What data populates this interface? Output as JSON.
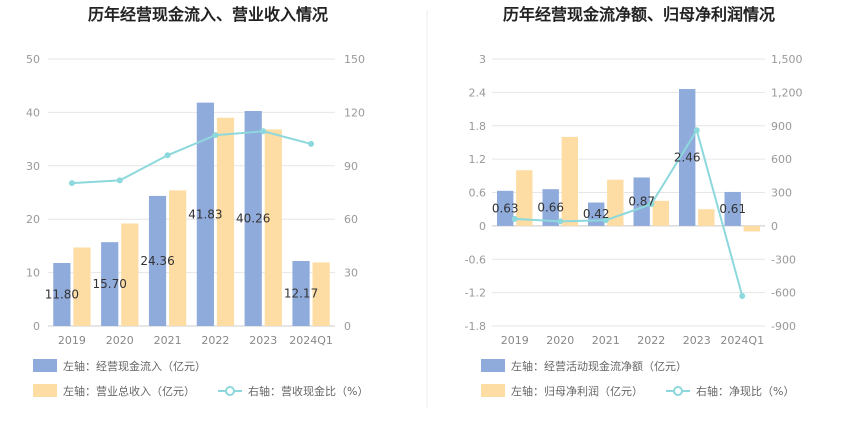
{
  "chart_data": [
    {
      "type": "bar",
      "title": "历年经营现金流入、营业收入情况",
      "categories": [
        "2019",
        "2020",
        "2021",
        "2022",
        "2023",
        "2024Q1"
      ],
      "left_axis": {
        "ylim": [
          0,
          50
        ],
        "ticks": [
          "0",
          "10",
          "20",
          "30",
          "40",
          "50"
        ]
      },
      "right_axis": {
        "ylim": [
          0,
          150
        ],
        "ticks": [
          "0",
          "30",
          "60",
          "90",
          "120",
          "150"
        ]
      },
      "series": [
        {
          "name": "左轴：经营现金流入（亿元）",
          "kind": "bar",
          "axis": "left",
          "color": "#8fabdc",
          "values": [
            11.8,
            15.7,
            24.36,
            41.83,
            40.26,
            12.17
          ],
          "labels": [
            "11.80",
            "15.70",
            "24.36",
            "41.83",
            "40.26",
            "12.17"
          ]
        },
        {
          "name": "左轴：营业总收入（亿元）",
          "kind": "bar",
          "axis": "left",
          "color": "#fddda3",
          "values": [
            14.7,
            19.2,
            25.4,
            39.0,
            36.8,
            11.9
          ]
        },
        {
          "name": "右轴：营收现金比（%）",
          "kind": "line",
          "axis": "right",
          "color": "#8dd8dc",
          "values": [
            80.3,
            81.8,
            95.9,
            107.2,
            109.4,
            102.3
          ]
        }
      ],
      "legend_position": "bottom-left",
      "grid": true
    },
    {
      "type": "bar",
      "title": "历年经营现金流净额、归母净利润情况",
      "categories": [
        "2019",
        "2020",
        "2021",
        "2022",
        "2023",
        "2024Q1"
      ],
      "left_axis": {
        "ylim": [
          -1.8,
          3
        ],
        "ticks": [
          "-1.8",
          "-1.2",
          "-0.6",
          "0",
          "0.6",
          "1.2",
          "1.8",
          "2.4",
          "3"
        ]
      },
      "right_axis": {
        "ylim": [
          -900,
          1500
        ],
        "ticks": [
          "-900",
          "-600",
          "-300",
          "0",
          "300",
          "600",
          "900",
          "1,200",
          "1,500"
        ]
      },
      "series": [
        {
          "name": "左轴：经营活动现金流净额（亿元）",
          "kind": "bar",
          "axis": "left",
          "color": "#8fabdc",
          "values": [
            0.63,
            0.66,
            0.42,
            0.87,
            2.46,
            0.61
          ],
          "labels": [
            "0.63",
            "0.66",
            "0.42",
            "0.87",
            "2.46",
            "0.61"
          ]
        },
        {
          "name": "左轴：归母净利润（亿元）",
          "kind": "bar",
          "axis": "left",
          "color": "#fddda3",
          "values": [
            1.0,
            1.6,
            0.83,
            0.45,
            0.3,
            -0.1
          ]
        },
        {
          "name": "右轴：净现比（%）",
          "kind": "line",
          "axis": "right",
          "color": "#8dd8dc",
          "values": [
            63,
            41,
            51,
            195,
            860,
            -630
          ]
        }
      ],
      "legend_position": "bottom-left",
      "grid": true
    }
  ]
}
